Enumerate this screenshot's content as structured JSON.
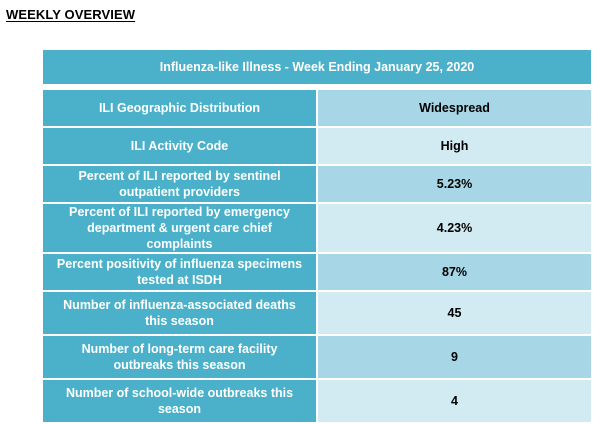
{
  "section_title": "WEEKLY OVERVIEW",
  "table": {
    "header": "Influenza-like Illness - Week Ending January 25, 2020",
    "rows": [
      {
        "label": "ILI Geographic Distribution",
        "value": "Widespread"
      },
      {
        "label": "ILI Activity Code",
        "value": "High"
      },
      {
        "label": "Percent of ILI reported by sentinel outpatient providers",
        "value": "5.23%"
      },
      {
        "label": "Percent of ILI reported by emergency department & urgent care chief complaints",
        "value": "4.23%"
      },
      {
        "label": "Percent positivity of influenza specimens tested at ISDH",
        "value": "87%"
      },
      {
        "label": "Number of influenza-associated deaths this season",
        "value": "45"
      },
      {
        "label": "Number of long-term care facility outbreaks this season",
        "value": "9"
      },
      {
        "label": "Number of school-wide outbreaks this season",
        "value": "4"
      }
    ]
  },
  "colors": {
    "header_bg": "#4bb0c9",
    "label_bg": "#4bb0c9",
    "value_bg_dark": "#a7d7e6",
    "value_bg_light": "#d2ebf3"
  }
}
